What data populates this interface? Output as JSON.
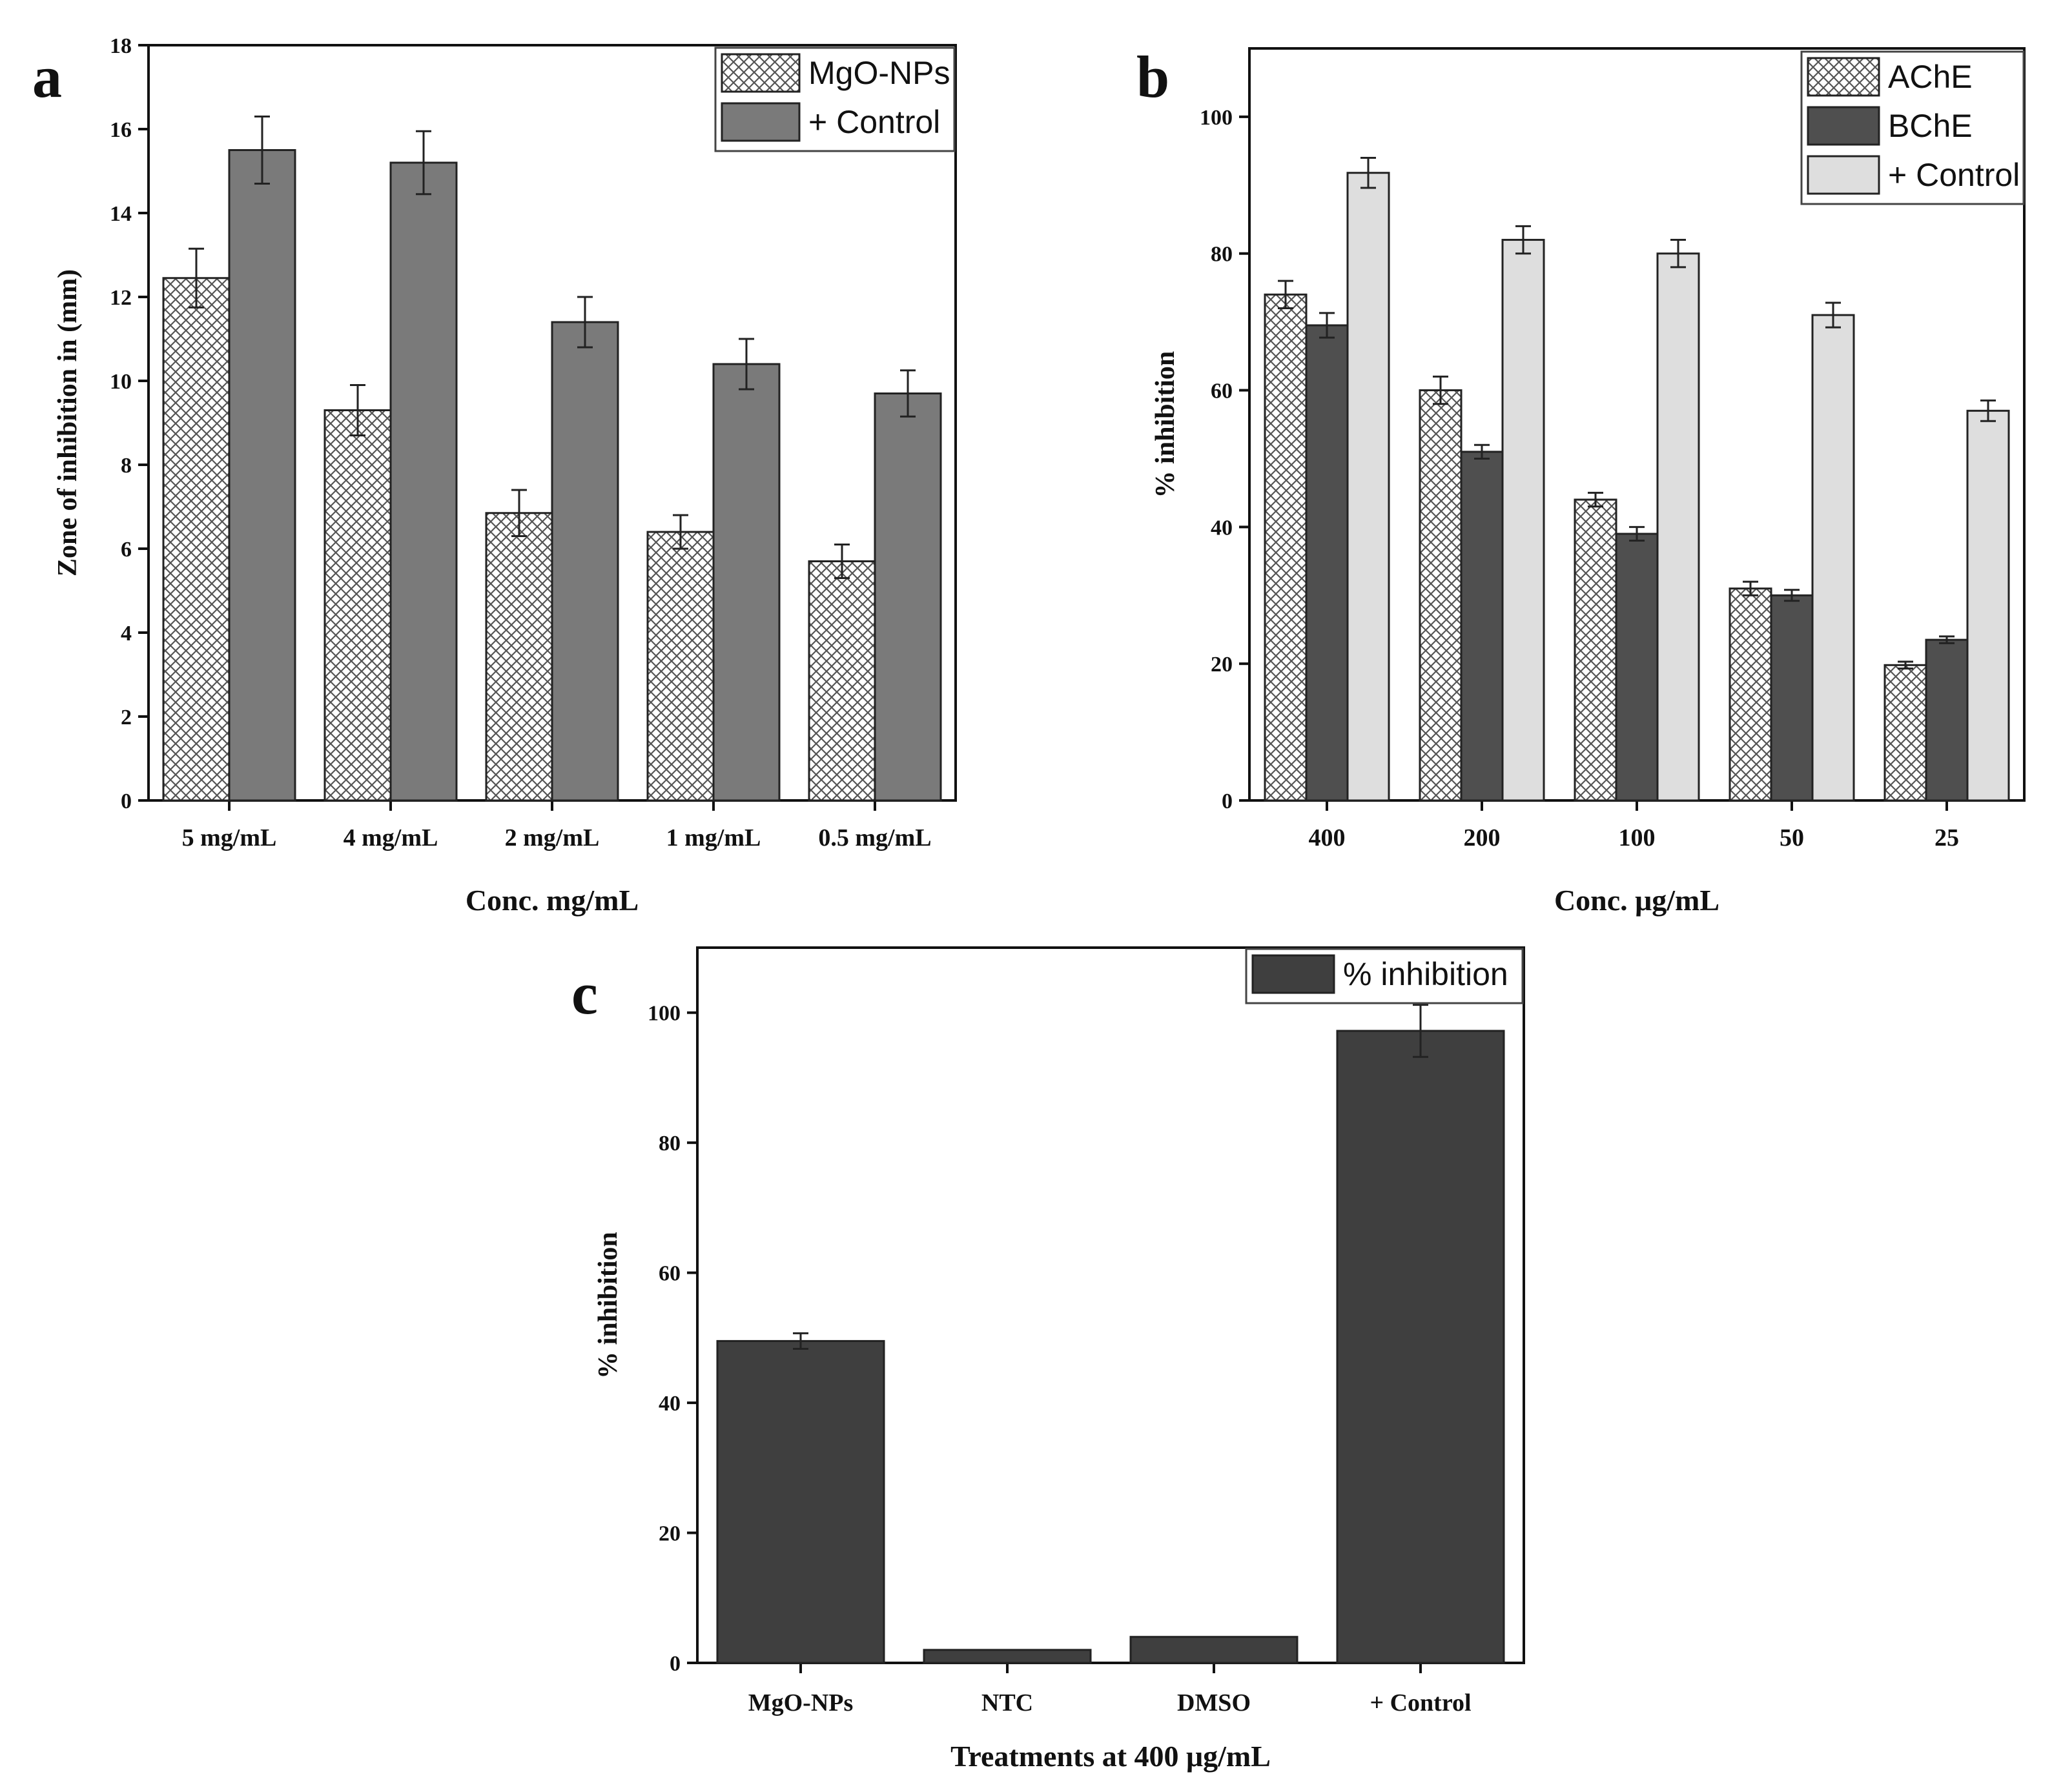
{
  "colors": {
    "mgo_fill": "#ffffff",
    "hatch_line": "#555555",
    "control_a": "#7a7a7a",
    "bche": "#4f4f4f",
    "control_b": "#dedede",
    "panel_c": "#3f3f3f",
    "axis": "#111111"
  },
  "chart_data": [
    {
      "panel_letter": "a",
      "type": "bar",
      "categories": [
        "5 mg/mL",
        "4 mg/mL",
        "2 mg/mL",
        "1 mg/mL",
        "0.5 mg/mL"
      ],
      "series": [
        {
          "name": "MgO-NPs",
          "values": [
            12.45,
            9.3,
            6.85,
            6.4,
            5.7
          ],
          "errors": [
            0.7,
            0.6,
            0.55,
            0.4,
            0.4
          ],
          "style": "hatch"
        },
        {
          "name": "+ Control",
          "values": [
            15.5,
            15.2,
            11.4,
            10.4,
            9.7
          ],
          "errors": [
            0.8,
            0.75,
            0.6,
            0.6,
            0.55
          ],
          "style": "control_a"
        }
      ],
      "title": "",
      "xlabel": "Conc. mg/mL",
      "ylabel": "Zone of inhibition in (mm)",
      "ylim": [
        0,
        18
      ],
      "yticks": [
        0,
        2,
        4,
        6,
        8,
        10,
        12,
        14,
        16,
        18
      ],
      "legend_position": "top-right"
    },
    {
      "panel_letter": "b",
      "type": "bar",
      "categories": [
        "400",
        "200",
        "100",
        "50",
        "25"
      ],
      "series": [
        {
          "name": "AChE",
          "values": [
            74,
            60,
            44,
            31,
            19.8
          ],
          "errors": [
            2.0,
            2.0,
            1.0,
            1.0,
            0.5
          ],
          "style": "hatch"
        },
        {
          "name": "BChE",
          "values": [
            69.5,
            51,
            39,
            30,
            23.5
          ],
          "errors": [
            1.8,
            1.0,
            1.0,
            0.8,
            0.5
          ],
          "style": "bche"
        },
        {
          "name": "+ Control",
          "values": [
            91.8,
            82,
            80,
            71,
            57
          ],
          "errors": [
            2.2,
            2.0,
            2.0,
            1.8,
            1.5
          ],
          "style": "control_b"
        }
      ],
      "title": "",
      "xlabel": "Conc. μg/mL",
      "ylabel": "% inhibition",
      "ylim": [
        0,
        110
      ],
      "yticks": [
        0,
        20,
        40,
        60,
        80,
        100
      ],
      "legend_position": "top-right"
    },
    {
      "panel_letter": "c",
      "type": "bar",
      "categories": [
        "MgO-NPs",
        "NTC",
        "DMSO",
        "+ Control"
      ],
      "series": [
        {
          "name": "% inhibition",
          "values": [
            49.5,
            2,
            4,
            97.2
          ],
          "errors": [
            1.2,
            0,
            0,
            4.0
          ],
          "style": "panel_c"
        }
      ],
      "title": "",
      "xlabel": "Treatments at 400 μg/mL",
      "ylabel": "% inhibition",
      "ylim": [
        0,
        110
      ],
      "yticks": [
        0,
        20,
        40,
        60,
        80,
        100
      ],
      "legend_position": "top-right"
    }
  ]
}
